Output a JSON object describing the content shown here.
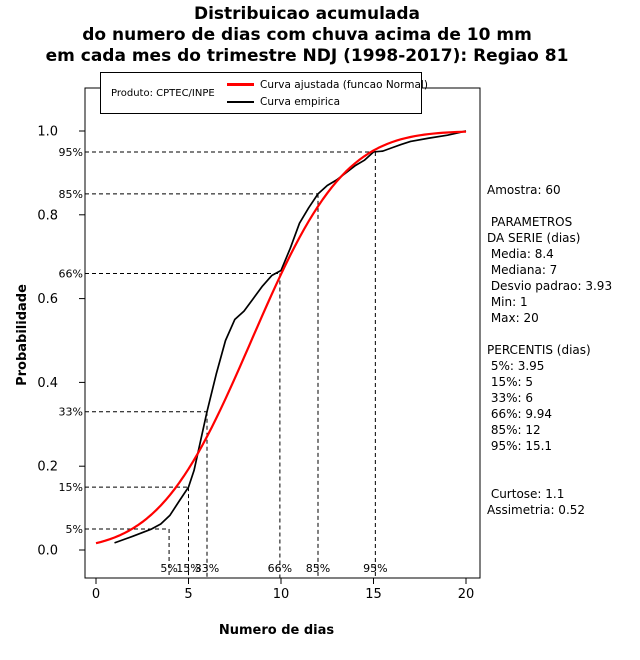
{
  "title_lines": [
    "Distribuicao acumulada",
    "do numero de dias com chuva acima de 10 mm",
    "em cada mes do trimestre NDJ (1998-2017): Regiao 81"
  ],
  "legend": {
    "product_label": "Produto: CPTEC/INPE"
  },
  "info": {
    "lines": [
      "Amostra: 60",
      "",
      " PARAMETROS",
      "DA SERIE (dias)",
      " Media: 8.4",
      " Mediana: 7",
      " Desvio padrao: 3.93",
      " Min: 1",
      " Max: 20",
      "",
      "PERCENTIS (dias)",
      " 5%: 3.95",
      " 15%: 5",
      " 33%: 6",
      " 66%: 9.94",
      " 85%: 12",
      " 95%: 15.1",
      "",
      "",
      " Curtose: 1.1",
      "Assimetria: 0.52"
    ]
  },
  "chart_data": {
    "type": "line",
    "title": "Distribuicao acumulada do numero de dias com chuva acima de 10 mm em cada mes do trimestre NDJ (1998-2017): Regiao 81",
    "xlabel": "Numero de dias",
    "ylabel": "Probabilidade",
    "xlim": [
      0,
      20
    ],
    "ylim": [
      0,
      1
    ],
    "xticks": [
      0,
      5,
      10,
      15,
      20
    ],
    "xtick_labels": [
      "0",
      "5",
      "10",
      "15",
      "20"
    ],
    "yticks": [
      0,
      0.2,
      0.4,
      0.6,
      0.8,
      1
    ],
    "ytick_labels": [
      "0.0",
      "0.2",
      "0.4",
      "0.6",
      "0.8",
      "1.0"
    ],
    "grid": false,
    "legend_position": "top-left",
    "sample_size": 60,
    "stats": {
      "media": 8.4,
      "mediana": 7,
      "desvio_padrao": 3.93,
      "min": 1,
      "max": 20,
      "curtose": 1.1,
      "assimetria": 0.52
    },
    "percentiles": [
      {
        "label": "5%",
        "p": 0.05,
        "days": 3.95
      },
      {
        "label": "15%",
        "p": 0.15,
        "days": 5
      },
      {
        "label": "33%",
        "p": 0.33,
        "days": 6
      },
      {
        "label": "66%",
        "p": 0.66,
        "days": 9.94
      },
      {
        "label": "85%",
        "p": 0.85,
        "days": 12
      },
      {
        "label": "95%",
        "p": 0.95,
        "days": 15.1
      }
    ],
    "series": [
      {
        "name": "Curva ajustada (funcao Normal)",
        "type": "normal_cdf",
        "mean": 8.4,
        "sd": 3.93,
        "color": "#ff0000"
      },
      {
        "name": "Curva empirica",
        "type": "empirical_cdf",
        "color": "#000000",
        "points": [
          [
            1,
            0.017
          ],
          [
            2,
            0.033
          ],
          [
            3,
            0.05
          ],
          [
            3.5,
            0.062
          ],
          [
            4,
            0.083
          ],
          [
            4.5,
            0.117
          ],
          [
            5,
            0.15
          ],
          [
            5.3,
            0.19
          ],
          [
            6,
            0.33
          ],
          [
            6.5,
            0.42
          ],
          [
            7,
            0.5
          ],
          [
            7.5,
            0.55
          ],
          [
            8,
            0.57
          ],
          [
            8.5,
            0.6
          ],
          [
            9,
            0.63
          ],
          [
            9.5,
            0.655
          ],
          [
            10,
            0.667
          ],
          [
            10.5,
            0.72
          ],
          [
            11,
            0.78
          ],
          [
            11.5,
            0.817
          ],
          [
            12,
            0.85
          ],
          [
            12.5,
            0.87
          ],
          [
            13,
            0.883
          ],
          [
            13.5,
            0.9
          ],
          [
            14,
            0.917
          ],
          [
            14.5,
            0.93
          ],
          [
            15,
            0.95
          ],
          [
            15.5,
            0.952
          ],
          [
            16,
            0.96
          ],
          [
            16.5,
            0.968
          ],
          [
            17,
            0.975
          ],
          [
            18,
            0.983
          ],
          [
            19,
            0.99
          ],
          [
            20,
            1.0
          ]
        ]
      }
    ]
  }
}
